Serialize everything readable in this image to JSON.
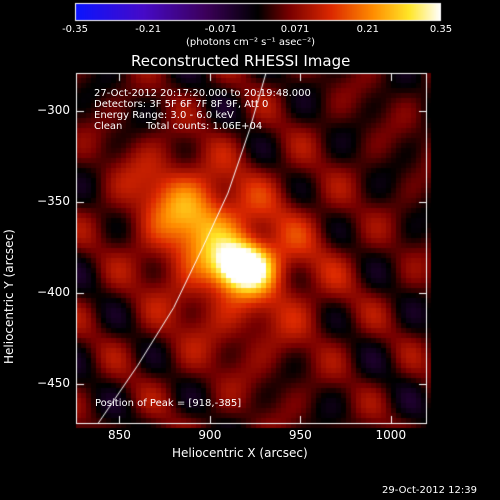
{
  "colorbar": {
    "ticks": [
      "-0.35",
      "-0.21",
      "-0.071",
      "0.071",
      "0.21",
      "0.35"
    ],
    "tick_values": [
      -0.35,
      -0.21,
      -0.071,
      0.071,
      0.21,
      0.35
    ],
    "range": [
      -0.35,
      0.35
    ],
    "unit_label": "(photons cm⁻² s⁻¹ asec⁻²)"
  },
  "chart_data": {
    "type": "heatmap",
    "title": "Reconstructed RHESSI Image",
    "xlabel": "Heliocentric X (arcsec)",
    "ylabel": "Heliocentric Y (arcsec)",
    "xlim": [
      826,
      1020
    ],
    "ylim": [
      -472,
      -279
    ],
    "xticks": [
      850,
      900,
      950,
      1000
    ],
    "yticks": [
      -300,
      -350,
      -400,
      -450
    ],
    "xtick_labels": [
      "850",
      "900",
      "950",
      "1000"
    ],
    "ytick_labels": [
      "−300",
      "−350",
      "−400",
      "−450"
    ],
    "colormap": "black-red-yellow-white (positive), blue-purple (negative)",
    "peak": {
      "x": 918,
      "y": -385,
      "value": 0.35
    },
    "secondary_sources": [
      {
        "x": 892,
        "y": -360,
        "value": 0.15
      },
      {
        "x": 870,
        "y": -340,
        "value": 0.07
      }
    ],
    "limb_arc": [
      [
        838,
        -472
      ],
      [
        860,
        -440
      ],
      [
        880,
        -408
      ],
      [
        896,
        -375
      ],
      [
        910,
        -345
      ],
      [
        922,
        -310
      ],
      [
        931,
        -279
      ]
    ],
    "annotations": {
      "time": "27-Oct-2012 20:17:20.000 to 20:19:48.000",
      "detectors": "Detectors: 3F 5F 6F 7F 8F 9F, Att 0",
      "energy": "Energy Range: 3.0 - 6.0 keV",
      "clean": "Clean",
      "counts": "Total counts: 1.06E+04",
      "peak_label": "Position of Peak = [918,-385]"
    }
  },
  "footer": {
    "timestamp": "29-Oct-2012 12:39"
  }
}
